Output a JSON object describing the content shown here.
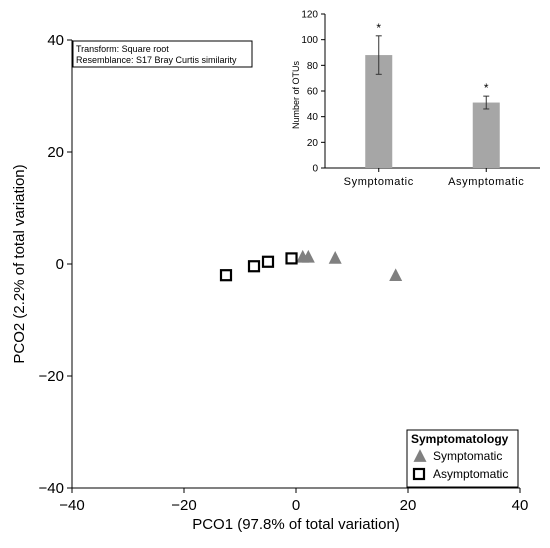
{
  "chart_data": [
    {
      "type": "scatter",
      "title": "",
      "xlabel": "PCO1 (97.8% of total variation)",
      "ylabel": "PCO2 (2.2% of total variation)",
      "xlim": [
        -40,
        40
      ],
      "ylim": [
        -40,
        40
      ],
      "x_ticks": [
        -40,
        -20,
        0,
        20,
        40
      ],
      "y_ticks": [
        -40,
        -20,
        0,
        20,
        40
      ],
      "x_tick_labels": [
        "−40",
        "−20",
        "0",
        "20",
        "40"
      ],
      "y_tick_labels": [
        "−40",
        "−20",
        "0",
        "20",
        "40"
      ],
      "grid": false,
      "annotation": [
        "Transform: Square root",
        "Resemblance: S17 Bray Curtis similarity"
      ],
      "legend": {
        "title": "Symptomatology",
        "placement": "bottom-right",
        "entries": [
          "Symptomatic",
          "Asymptomatic"
        ]
      },
      "series": [
        {
          "name": "Symptomatic",
          "marker": "triangle",
          "color": "#808080",
          "points": [
            [
              1.2,
              1.3
            ],
            [
              2.2,
              1.3
            ],
            [
              7.0,
              1.1
            ],
            [
              17.8,
              -2.0
            ]
          ]
        },
        {
          "name": "Asymptomatic",
          "marker": "open-square",
          "color": "#000000",
          "points": [
            [
              -12.5,
              -2.0
            ],
            [
              -7.5,
              -0.4
            ],
            [
              -5.0,
              0.4
            ],
            [
              -0.8,
              1.0
            ]
          ]
        }
      ]
    },
    {
      "type": "bar",
      "title": "",
      "xlabel": "",
      "ylabel": "Number of OTUs",
      "categories": [
        "Symptomatic",
        "Asymptomatic"
      ],
      "values": [
        88,
        51
      ],
      "error": [
        15,
        5
      ],
      "data_labels": [
        "*",
        "*"
      ],
      "ylim": [
        0,
        120
      ],
      "y_ticks": [
        0,
        20,
        40,
        60,
        80,
        100,
        120
      ],
      "y_tick_labels": [
        "0",
        "20",
        "40",
        "60",
        "80",
        "100",
        "120"
      ],
      "bar_color": "#a6a6a6",
      "grid": false
    }
  ]
}
